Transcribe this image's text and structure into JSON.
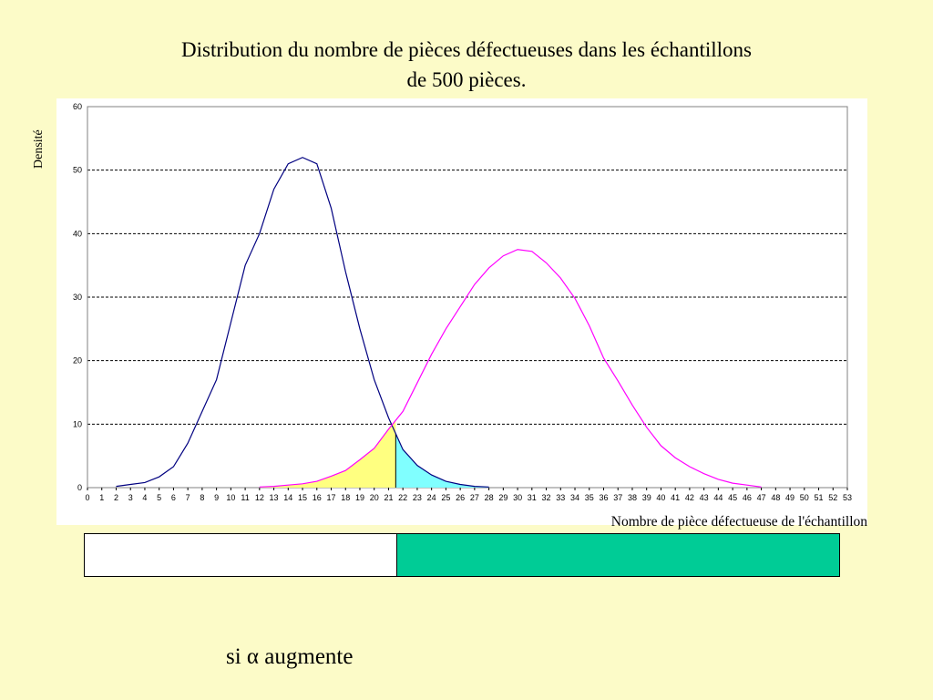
{
  "title": {
    "line1": "Distribution du nombre de pièces défectueuses dans les échantillons",
    "line2": "de 500 pièces."
  },
  "note": "si α augmente",
  "colors": {
    "background": "#fcfbc8",
    "h0_curve": "#000080",
    "h1_curve": "#ff00ff",
    "alpha_fill": "#80ffff",
    "beta_fill": "#ffff80",
    "accept_zone": "#ffffff",
    "reject_zone": "#00cc96"
  },
  "decision_bar": {
    "split_value": 21.5
  },
  "chart_data": {
    "type": "line",
    "xlabel": "Nombre de pièce défectueuse de l'échantillon",
    "ylabel": "Densité",
    "xlim": [
      0,
      53
    ],
    "ylim": [
      0,
      60
    ],
    "x_ticks": [
      0,
      1,
      2,
      3,
      4,
      5,
      6,
      7,
      8,
      9,
      10,
      11,
      12,
      13,
      14,
      15,
      16,
      17,
      18,
      19,
      20,
      21,
      22,
      23,
      24,
      25,
      26,
      27,
      28,
      29,
      30,
      31,
      32,
      33,
      34,
      35,
      36,
      37,
      38,
      39,
      40,
      41,
      42,
      43,
      44,
      45,
      46,
      47,
      48,
      49,
      50,
      51,
      52,
      53
    ],
    "y_ticks": [
      0,
      10,
      20,
      30,
      40,
      50,
      60
    ],
    "grid": "horizontal-dashed",
    "critical_value": 21.5,
    "series": [
      {
        "color": "#000080",
        "x": [
          2,
          3,
          4,
          5,
          6,
          7,
          8,
          9,
          10,
          11,
          12,
          13,
          14,
          15,
          16,
          17,
          18,
          19,
          20,
          21,
          22,
          23,
          24,
          25,
          26,
          27,
          28
        ],
        "y": [
          0.2,
          0.5,
          0.8,
          1.7,
          3.3,
          7,
          12,
          17,
          26,
          35,
          40,
          47,
          51,
          52,
          51,
          44,
          34,
          25,
          17,
          11,
          6,
          3.5,
          2,
          1,
          0.5,
          0.2,
          0.1
        ]
      },
      {
        "color": "#ff00ff",
        "x": [
          12,
          13,
          14,
          15,
          16,
          17,
          18,
          19,
          20,
          21,
          22,
          23,
          24,
          25,
          26,
          27,
          28,
          29,
          30,
          31,
          32,
          33,
          34,
          35,
          36,
          37,
          38,
          39,
          40,
          41,
          42,
          43,
          44,
          45,
          46,
          47
        ],
        "y": [
          0.1,
          0.2,
          0.4,
          0.6,
          1,
          1.8,
          2.7,
          4.4,
          6.2,
          9.2,
          12,
          16.5,
          21,
          25,
          28.5,
          32,
          34.6,
          36.5,
          37.5,
          37.2,
          35.4,
          33,
          29.8,
          25.5,
          20.4,
          16.8,
          13,
          9.5,
          6.6,
          4.7,
          3.3,
          2.2,
          1.3,
          0.7,
          0.4,
          0.1
        ]
      }
    ]
  }
}
